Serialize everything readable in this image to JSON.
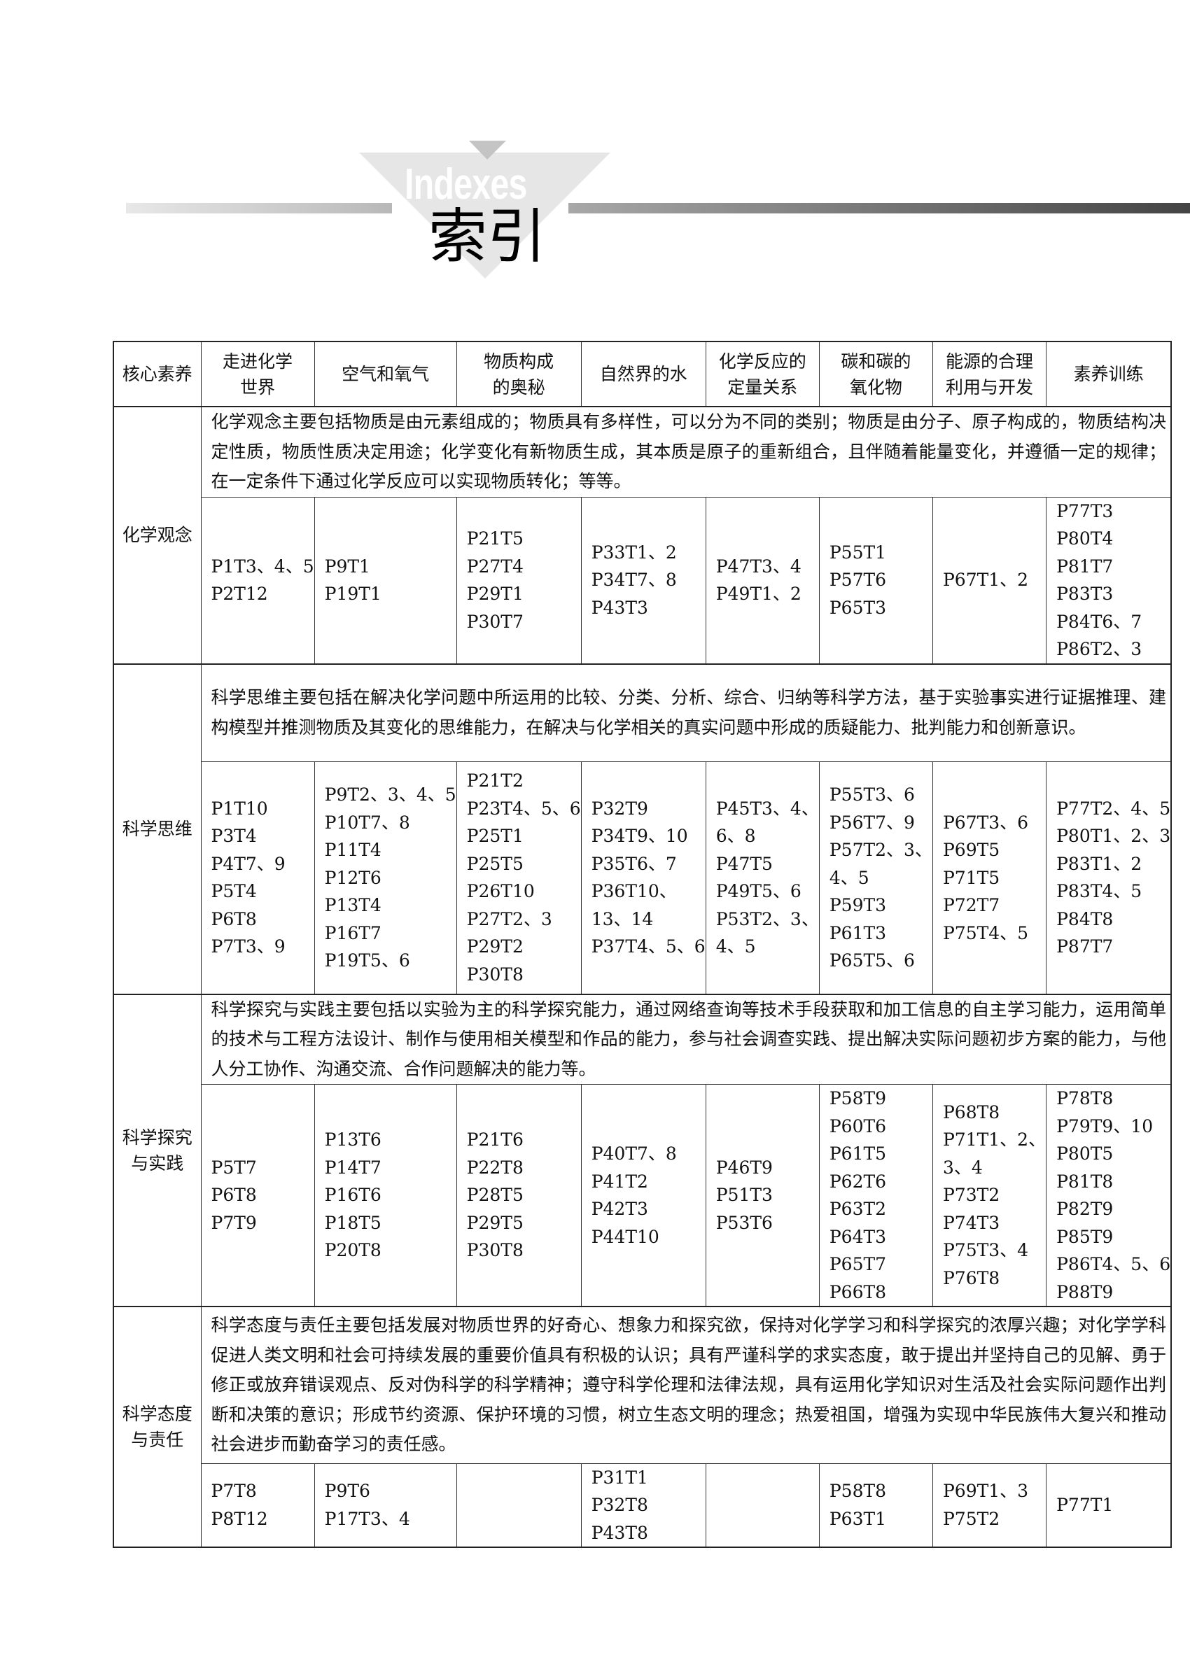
{
  "banner": {
    "english": "Indexes",
    "title": "索引"
  },
  "table": {
    "headers": [
      "核心素养",
      "走进化学世界",
      "空气和氧气",
      "物质构成的奥秘",
      "自然界的水",
      "化学反应的定量关系",
      "碳和碳的氧化物",
      "能源的合理利用与开发",
      "素养训练"
    ],
    "header_lines": [
      [
        "核心素养"
      ],
      [
        "走进化学",
        "世界"
      ],
      [
        "空气和氧气"
      ],
      [
        "物质构成",
        "的奥秘"
      ],
      [
        "自然界的水"
      ],
      [
        "化学反应的",
        "定量关系"
      ],
      [
        "碳和碳的",
        "氧化物"
      ],
      [
        "能源的合理",
        "利用与开发"
      ],
      [
        "素养训练"
      ]
    ],
    "rows": [
      {
        "category_lines": [
          "化学观念"
        ],
        "description": "化学观念主要包括物质是由元素组成的；物质具有多样性，可以分为不同的类别；物质是由分子、原子构成的，物质结构决定性质，物质性质决定用途；化学变化有新物质生成，其本质是原子的重新组合，且伴随着能量变化，并遵循一定的规律；在一定条件下通过化学反应可以实现物质转化；等等。",
        "refs": [
          [
            "P1T3、4、5",
            "P2T12"
          ],
          [
            "P9T1",
            "P19T1"
          ],
          [
            "P21T5",
            "P27T4",
            "P29T1",
            "P30T7"
          ],
          [
            "P33T1、2",
            "P34T7、8",
            "P43T3"
          ],
          [
            "P47T3、4",
            "P49T1、2"
          ],
          [
            "P55T1",
            "P57T6",
            "P65T3"
          ],
          [
            "P67T1、2"
          ],
          [
            "P77T3",
            "P80T4",
            "P81T7",
            "P83T3",
            "P84T6、7",
            "P86T2、3"
          ]
        ]
      },
      {
        "category_lines": [
          "科学思维"
        ],
        "description": "科学思维主要包括在解决化学问题中所运用的比较、分类、分析、综合、归纳等科学方法，基于实验事实进行证据推理、建构模型并推测物质及其变化的思维能力，在解决与化学相关的真实问题中形成的质疑能力、批判能力和创新意识。",
        "refs": [
          [
            "P1T10",
            "P3T4",
            "P4T7、9",
            "P5T4",
            "P6T8",
            "P7T3、9"
          ],
          [
            "P9T2、3、4、5",
            "P10T7、8",
            "P11T4",
            "P12T6",
            "P13T4",
            "P16T7",
            "P19T5、6"
          ],
          [
            "P21T2",
            "P23T4、5、6",
            "P25T1",
            "P25T5",
            "P26T10",
            "P27T2、3",
            "P29T2",
            "P30T8"
          ],
          [
            "P32T9",
            "P34T9、10",
            "P35T6、7",
            "P36T10、",
            "13、14",
            "P37T4、5、6"
          ],
          [
            "P45T3、4、",
            "6、8",
            "P47T5",
            "P49T5、6",
            "P53T2、3、",
            "4、5"
          ],
          [
            "P55T3、6",
            "P56T7、9",
            "P57T2、3、",
            "4、5",
            "P59T3",
            "P61T3",
            "P65T5、6"
          ],
          [
            "P67T3、6",
            "P69T5",
            "P71T5",
            "P72T7",
            "P75T4、5"
          ],
          [
            "P77T2、4、5",
            "P80T1、2、3",
            "P83T1、2",
            "P83T4、5",
            "P84T8",
            "P87T7"
          ]
        ]
      },
      {
        "category_lines": [
          "科学探究",
          "与实践"
        ],
        "description": "科学探究与实践主要包括以实验为主的科学探究能力，通过网络查询等技术手段获取和加工信息的自主学习能力，运用简单的技术与工程方法设计、制作与使用相关模型和作品的能力，参与社会调查实践、提出解决实际问题初步方案的能力，与他人分工协作、沟通交流、合作问题解决的能力等。",
        "refs": [
          [
            "P5T7",
            "P6T8",
            "P7T9"
          ],
          [
            "P13T6",
            "P14T7",
            "P16T6",
            "P18T5",
            "P20T8"
          ],
          [
            "P21T6",
            "P22T8",
            "P28T5",
            "P29T5",
            "P30T8"
          ],
          [
            "P40T7、8",
            "P41T2",
            "P42T3",
            "P44T10"
          ],
          [
            "P46T9",
            "P51T3",
            "P53T6"
          ],
          [
            "P58T9",
            "P60T6",
            "P61T5",
            "P62T6",
            "P63T2",
            "P64T3",
            "P65T7",
            "P66T8"
          ],
          [
            "P68T8",
            "P71T1、2、",
            "3、4",
            "P73T2",
            "P74T3",
            "P75T3、4",
            "P76T8"
          ],
          [
            "P78T8",
            "P79T9、10",
            "P80T5",
            "P81T8",
            "P82T9",
            "P85T9",
            "P86T4、5、6",
            "P88T9"
          ]
        ]
      },
      {
        "category_lines": [
          "科学态度",
          "与责任"
        ],
        "description": "科学态度与责任主要包括发展对物质世界的好奇心、想象力和探究欲，保持对化学学习和科学探究的浓厚兴趣；对化学学科促进人类文明和社会可持续发展的重要价值具有积极的认识；具有严谨科学的求实态度，敢于提出并坚持自己的见解、勇于修正或放弃错误观点、反对伪科学的科学精神；遵守科学伦理和法律法规，具有运用化学知识对生活及社会实际问题作出判断和决策的意识；形成节约资源、保护环境的习惯，树立生态文明的理念；热爱祖国，增强为实现中华民族伟大复兴和推动社会进步而勤奋学习的责任感。",
        "refs": [
          [
            "P7T8",
            "P8T12"
          ],
          [
            "P9T6",
            "P17T3、4"
          ],
          [],
          [
            "P31T1",
            "P32T8",
            "P43T8"
          ],
          [],
          [
            "P58T8",
            "P63T1"
          ],
          [
            "P69T1、3",
            "P75T2"
          ],
          [
            "P77T1"
          ]
        ]
      }
    ]
  }
}
